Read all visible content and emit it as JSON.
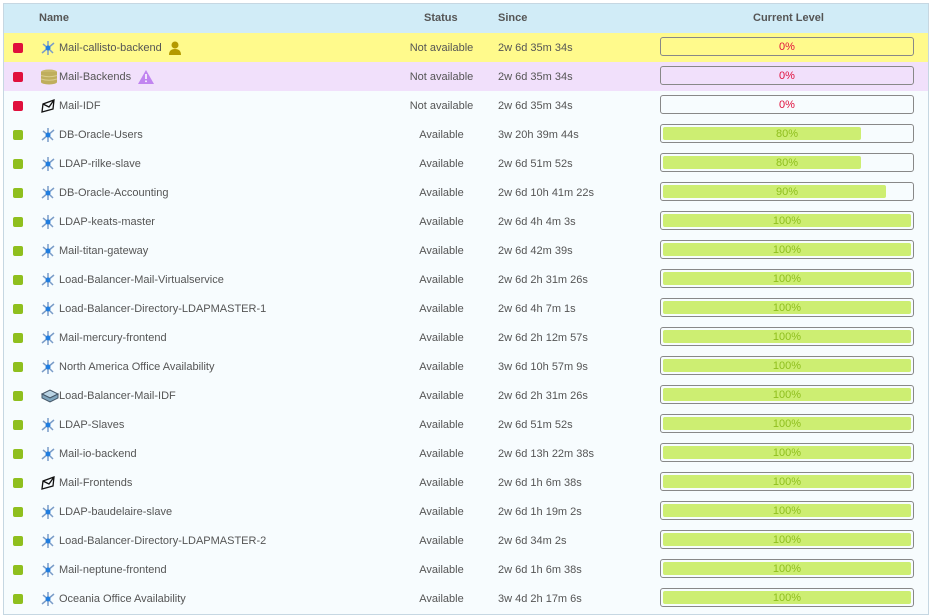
{
  "header": {
    "name": "Name",
    "status": "Status",
    "since": "Since",
    "level": "Current Level"
  },
  "colors": {
    "down": "#e0103c",
    "up": "#8fbf1e",
    "bar_fill": "#cdee72",
    "pct_down": "#e0103c",
    "pct_up": "#8fbf1e"
  },
  "rows": [
    {
      "name": "Mail-callisto-backend",
      "icon": "service-icon",
      "badge": "user-icon",
      "status": "Not available",
      "since": "2w 6d 35m 34s",
      "level": 0,
      "level_label": "0%",
      "state": "down",
      "bg": "yellow"
    },
    {
      "name": "Mail-Backends",
      "icon": "database-icon",
      "badge": "warning-icon",
      "status": "Not available",
      "since": "2w 6d 35m 34s",
      "level": 0,
      "level_label": "0%",
      "state": "down",
      "bg": "purple"
    },
    {
      "name": "Mail-IDF",
      "icon": "envelope-icon",
      "status": "Not available",
      "since": "2w 6d 35m 34s",
      "level": 0,
      "level_label": "0%",
      "state": "down"
    },
    {
      "name": "DB-Oracle-Users",
      "icon": "service-icon",
      "status": "Available",
      "since": "3w 20h 39m 44s",
      "level": 80,
      "level_label": "80%",
      "state": "up"
    },
    {
      "name": "LDAP-rilke-slave",
      "icon": "service-icon",
      "status": "Available",
      "since": "2w 6d 51m 52s",
      "level": 80,
      "level_label": "80%",
      "state": "up"
    },
    {
      "name": "DB-Oracle-Accounting",
      "icon": "service-icon",
      "status": "Available",
      "since": "2w 6d 10h 41m 22s",
      "level": 90,
      "level_label": "90%",
      "state": "up"
    },
    {
      "name": "LDAP-keats-master",
      "icon": "service-icon",
      "status": "Available",
      "since": "2w 6d 4h 4m 3s",
      "level": 100,
      "level_label": "100%",
      "state": "up"
    },
    {
      "name": "Mail-titan-gateway",
      "icon": "service-icon",
      "status": "Available",
      "since": "2w 6d 42m 39s",
      "level": 100,
      "level_label": "100%",
      "state": "up"
    },
    {
      "name": "Load-Balancer-Mail-Virtualservice",
      "icon": "service-icon",
      "status": "Available",
      "since": "2w 6d 2h 31m 26s",
      "level": 100,
      "level_label": "100%",
      "state": "up"
    },
    {
      "name": "Load-Balancer-Directory-LDAPMASTER-1",
      "icon": "service-icon",
      "status": "Available",
      "since": "2w 6d 4h 7m 1s",
      "level": 100,
      "level_label": "100%",
      "state": "up"
    },
    {
      "name": "Mail-mercury-frontend",
      "icon": "service-icon",
      "status": "Available",
      "since": "2w 6d 2h 12m 57s",
      "level": 100,
      "level_label": "100%",
      "state": "up"
    },
    {
      "name": "North America Office Availability",
      "icon": "service-icon",
      "status": "Available",
      "since": "3w 6d 10h 57m 9s",
      "level": 100,
      "level_label": "100%",
      "state": "up"
    },
    {
      "name": "Load-Balancer-Mail-IDF",
      "icon": "device-icon",
      "status": "Available",
      "since": "2w 6d 2h 31m 26s",
      "level": 100,
      "level_label": "100%",
      "state": "up"
    },
    {
      "name": "LDAP-Slaves",
      "icon": "service-icon",
      "status": "Available",
      "since": "2w 6d 51m 52s",
      "level": 100,
      "level_label": "100%",
      "state": "up"
    },
    {
      "name": "Mail-io-backend",
      "icon": "service-icon",
      "status": "Available",
      "since": "2w 6d 13h 22m 38s",
      "level": 100,
      "level_label": "100%",
      "state": "up"
    },
    {
      "name": "Mail-Frontends",
      "icon": "envelope-icon",
      "status": "Available",
      "since": "2w 6d 1h 6m 38s",
      "level": 100,
      "level_label": "100%",
      "state": "up"
    },
    {
      "name": "LDAP-baudelaire-slave",
      "icon": "service-icon",
      "status": "Available",
      "since": "2w 6d 1h 19m 2s",
      "level": 100,
      "level_label": "100%",
      "state": "up"
    },
    {
      "name": "Load-Balancer-Directory-LDAPMASTER-2",
      "icon": "service-icon",
      "status": "Available",
      "since": "2w 6d 34m 2s",
      "level": 100,
      "level_label": "100%",
      "state": "up"
    },
    {
      "name": "Mail-neptune-frontend",
      "icon": "service-icon",
      "status": "Available",
      "since": "2w 6d 1h 6m 38s",
      "level": 100,
      "level_label": "100%",
      "state": "up"
    },
    {
      "name": "Oceania Office Availability",
      "icon": "service-icon",
      "status": "Available",
      "since": "3w 4d 2h 17m 6s",
      "level": 100,
      "level_label": "100%",
      "state": "up"
    }
  ]
}
